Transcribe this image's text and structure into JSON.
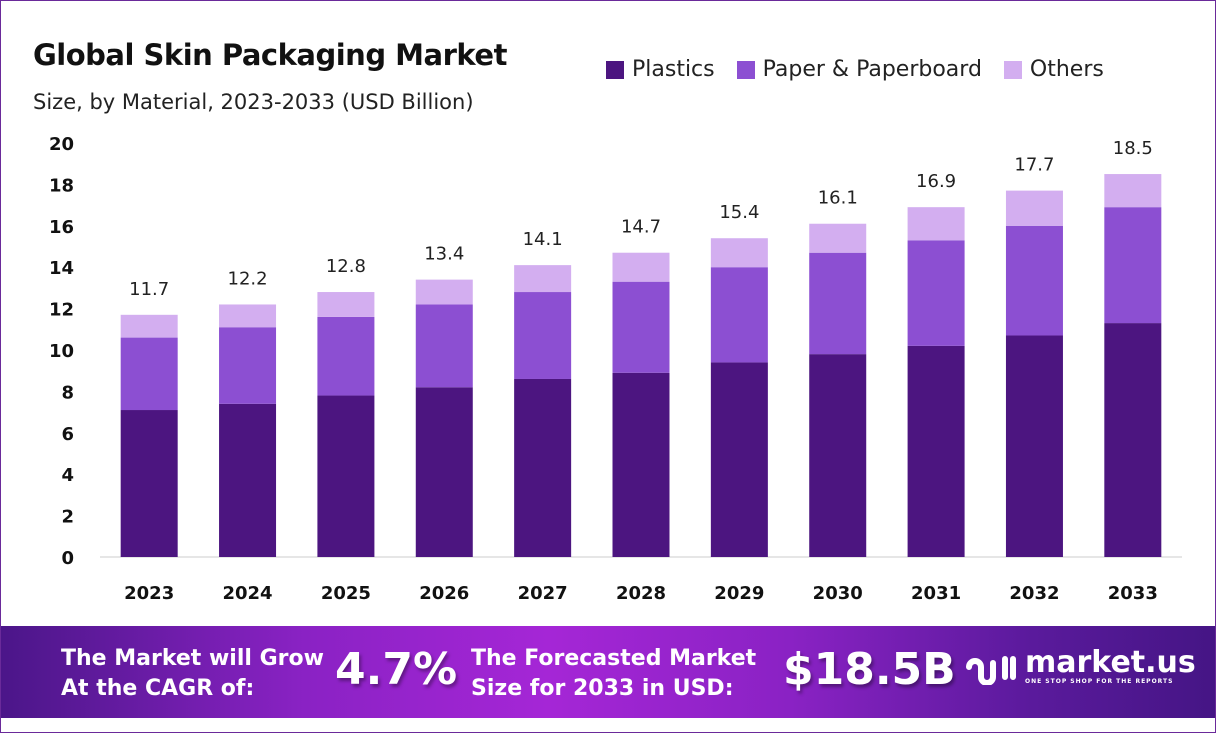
{
  "chart_data": {
    "type": "bar",
    "stacked": true,
    "title": "Global Skin Packaging Market",
    "subtitle": "Size, by Material, 2023-2033 (USD Billion)",
    "xlabel": "",
    "ylabel": "",
    "ylim": [
      0,
      20
    ],
    "yticks": [
      "0",
      "2",
      "4",
      "6",
      "8",
      "10",
      "12",
      "14",
      "16",
      "18",
      "20"
    ],
    "categories": [
      "2023",
      "2024",
      "2025",
      "2026",
      "2027",
      "2028",
      "2029",
      "2030",
      "2031",
      "2032",
      "2033"
    ],
    "series": [
      {
        "name": "Plastics",
        "color": "#4c1580",
        "values": [
          7.1,
          7.4,
          7.8,
          8.2,
          8.6,
          8.9,
          9.4,
          9.8,
          10.2,
          10.7,
          11.3
        ]
      },
      {
        "name": "Paper & Paperboard",
        "color": "#8c4fd2",
        "values": [
          3.5,
          3.7,
          3.8,
          4.0,
          4.2,
          4.4,
          4.6,
          4.9,
          5.1,
          5.3,
          5.6
        ]
      },
      {
        "name": "Others",
        "color": "#d3aef0",
        "values": [
          1.1,
          1.1,
          1.2,
          1.2,
          1.3,
          1.4,
          1.4,
          1.4,
          1.6,
          1.7,
          1.6
        ]
      }
    ],
    "totals": [
      "11.7",
      "12.2",
      "12.8",
      "13.4",
      "14.1",
      "14.7",
      "15.4",
      "16.1",
      "16.9",
      "17.7",
      "18.5"
    ],
    "legend_position": "top-right",
    "grid": false
  },
  "footer": {
    "cagr_line1": "The Market will Grow",
    "cagr_line2": "At the CAGR of:",
    "cagr_value": "4.7%",
    "forecast_line1": "The Forecasted Market",
    "forecast_line2": "Size for 2033 in USD:",
    "forecast_value": "$18.5B",
    "logo_name": "market.us",
    "logo_tagline": "ONE STOP SHOP FOR THE REPORTS"
  }
}
